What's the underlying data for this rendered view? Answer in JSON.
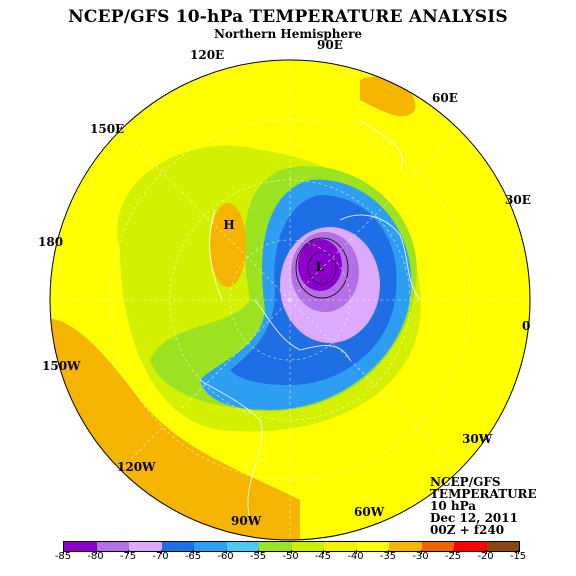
{
  "header": {
    "title": "NCEP/GFS 10-hPa TEMPERATURE ANALYSIS",
    "subtitle": "Northern Hemisphere"
  },
  "longitude_labels": [
    "90E",
    "120E",
    "60E",
    "150E",
    "30E",
    "180",
    "0",
    "150W",
    "30W",
    "120W",
    "90W",
    "60W"
  ],
  "info_block": [
    "NCEP/GFS",
    "TEMPERATURE",
    "10 hPa",
    "Dec 12, 2011",
    "00Z + f240"
  ],
  "extrema_markers": {
    "high": "H",
    "low": "L"
  },
  "colorbar": {
    "labels": [
      "-85",
      "-80",
      "-75",
      "-70",
      "-65",
      "-60",
      "-55",
      "-50",
      "-45",
      "-40",
      "-35",
      "-30",
      "-25",
      "-20",
      "-15"
    ],
    "colors": [
      "#8a00c8",
      "#b46ee6",
      "#dcaaff",
      "#1e6ee6",
      "#2e9ef2",
      "#4cc8f5",
      "#9be320",
      "#c8f000",
      "#f5f000",
      "#ffff00",
      "#f5b400",
      "#f06400",
      "#ff0000",
      "#8b4513",
      "#808080"
    ]
  }
}
